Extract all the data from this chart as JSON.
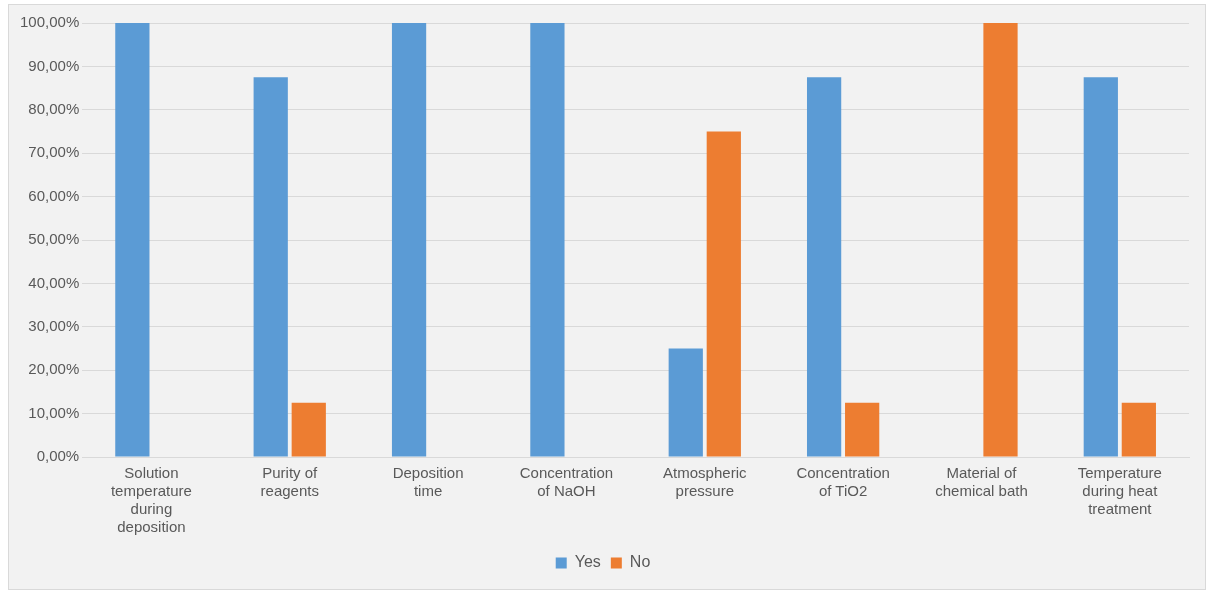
{
  "chart_data": {
    "type": "bar",
    "categories": [
      "Solution temperature during deposition",
      "Purity of reagents",
      "Deposition time",
      "Concentration of NaOH",
      "Atmospheric pressure",
      "Concentration of TiO2",
      "Material  of chemical bath",
      "Temperature during heat treatment"
    ],
    "series": [
      {
        "name": "Yes",
        "color": "#5b9bd5",
        "values": [
          100,
          87.5,
          100,
          100,
          25,
          87.5,
          0,
          87.5
        ]
      },
      {
        "name": "No",
        "color": "#ed7d31",
        "values": [
          0,
          12.5,
          0,
          0,
          75,
          12.5,
          100,
          12.5
        ]
      }
    ],
    "ylim": [
      0,
      100
    ],
    "yticks": [
      {
        "value": 0,
        "label": "0,00%"
      },
      {
        "value": 10,
        "label": "10,00%"
      },
      {
        "value": 20,
        "label": "20,00%"
      },
      {
        "value": 30,
        "label": "30,00%"
      },
      {
        "value": 40,
        "label": "40,00%"
      },
      {
        "value": 50,
        "label": "50,00%"
      },
      {
        "value": 60,
        "label": "60,00%"
      },
      {
        "value": 70,
        "label": "70,00%"
      },
      {
        "value": 80,
        "label": "80,00%"
      },
      {
        "value": 90,
        "label": "90,00%"
      },
      {
        "value": 100,
        "label": "100,00%"
      }
    ],
    "grid": "y",
    "legend": "bottom"
  }
}
